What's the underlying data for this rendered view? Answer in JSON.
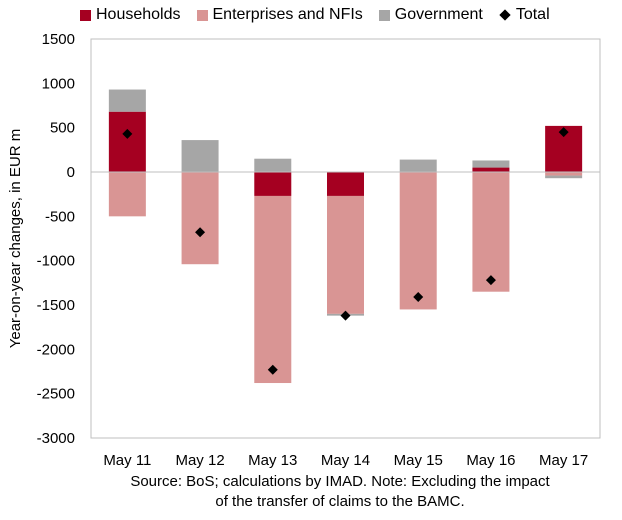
{
  "chart_data": {
    "type": "bar",
    "stacked": true,
    "categories": [
      "May 11",
      "May 12",
      "May 13",
      "May 14",
      "May 15",
      "May 16",
      "May 17"
    ],
    "ylabel": "Year-on-year changes, in EUR m",
    "xlabel": "",
    "ylim": [
      -3000,
      1500
    ],
    "yticks": [
      1500,
      1000,
      500,
      0,
      -500,
      -1000,
      -1500,
      -2000,
      -2500,
      -3000
    ],
    "grid": false,
    "legend_position": "top",
    "series": [
      {
        "name": "Households",
        "color": "#a50021",
        "values": [
          680,
          0,
          -270,
          -270,
          0,
          50,
          520
        ]
      },
      {
        "name": "Enterprises and NFIs",
        "color": "#d99594",
        "values": [
          -500,
          -1040,
          -2110,
          -1330,
          -1550,
          -1350,
          -40
        ]
      },
      {
        "name": "Government",
        "color": "#a6a6a6",
        "values": [
          250,
          360,
          150,
          -20,
          140,
          80,
          -30
        ]
      }
    ],
    "total": {
      "name": "Total",
      "marker": "diamond",
      "color": "#000000",
      "values": [
        430,
        -680,
        -2230,
        -1620,
        -1410,
        -1220,
        450
      ]
    }
  },
  "source_note": {
    "line1": "Source: BoS; calculations by IMAD. Note: Excluding the impact",
    "line2": "of the transfer of claims to the BAMC."
  }
}
